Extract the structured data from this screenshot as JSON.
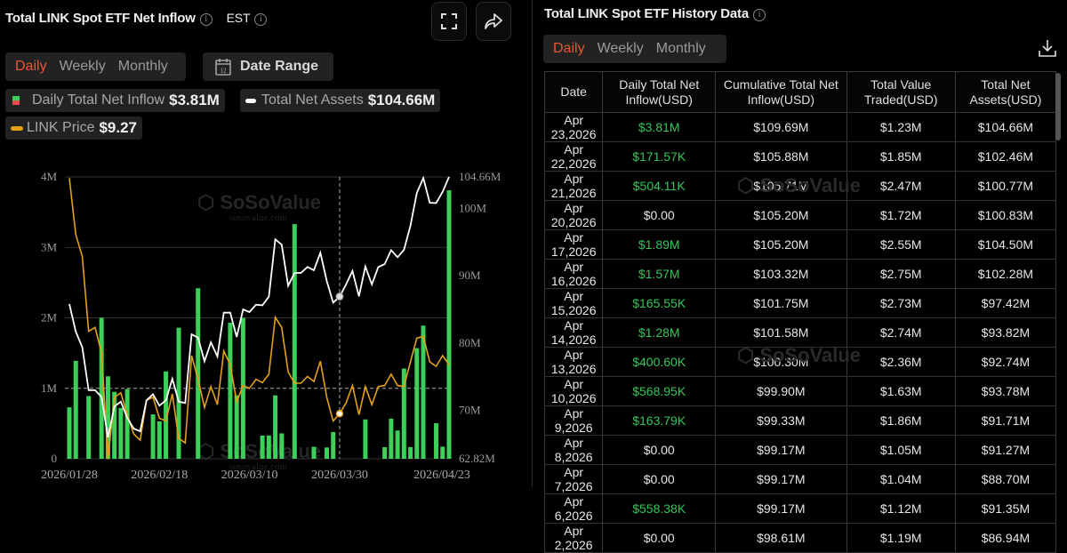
{
  "left": {
    "title": "Total LINK Spot ETF Net Inflow",
    "timezone": "EST",
    "icons": {
      "fullscreen": "fullscreen-icon",
      "share": "share-icon",
      "info": "info-icon",
      "calendar": "calendar-icon"
    },
    "tabs": [
      {
        "label": "Daily",
        "active": true
      },
      {
        "label": "Weekly",
        "active": false
      },
      {
        "label": "Monthly",
        "active": false
      }
    ],
    "date_range_label": "Date Range",
    "calendar_day": "12",
    "legend": [
      {
        "label": "Daily Total Net Inflow",
        "value": "$3.81M"
      },
      {
        "label": "Total Net Assets",
        "value": "$104.66M"
      },
      {
        "label": "LINK Price",
        "value": "$9.27"
      }
    ],
    "watermark": "SoSoValue",
    "watermark_sub": "sosovalue.com"
  },
  "colors": {
    "accent": "#e8572f",
    "bar": "#3ccf5a",
    "assets_line": "#ffffff",
    "price_line": "#e3a018",
    "positive": "#37c45a"
  },
  "chart_data": {
    "type": "bar+line",
    "x_tick_labels": [
      "2026/01/28",
      "2026/02/18",
      "2026/03/10",
      "2026/03/30",
      "2026/04/23"
    ],
    "x_tick_index": [
      0,
      14,
      28,
      42,
      59
    ],
    "left_axis": {
      "ticks": [
        "0",
        "1M",
        "2M",
        "3M",
        "4M"
      ],
      "tick_values": [
        0,
        1,
        2,
        3,
        4
      ],
      "range": [
        0,
        4
      ],
      "unit": "M USD"
    },
    "right_axis": {
      "ticks": [
        "62.82M",
        "70M",
        "80M",
        "90M",
        "100M",
        "104.66M"
      ],
      "tick_values": [
        62.82,
        70,
        80,
        90,
        100,
        104.66
      ],
      "range": [
        62.82,
        104.66
      ],
      "unit": "M USD"
    },
    "price_axis": {
      "visible": false,
      "range": [
        7.6,
        12.6
      ]
    },
    "dashed_reference": 1,
    "crosshair_index": 42,
    "grid": true,
    "series": [
      {
        "name": "Daily Total Net Inflow",
        "type": "bar",
        "axis": "left",
        "values": [
          0.73,
          1.39,
          0,
          0.89,
          0,
          2.0,
          1.17,
          0.95,
          0.72,
          0.99,
          0,
          0,
          0,
          0.63,
          0.53,
          1.24,
          0,
          1.86,
          0,
          0,
          2.42,
          0,
          0,
          0,
          0,
          1.93,
          0.9,
          2.0,
          0,
          0,
          0.33,
          0.33,
          0.9,
          0.36,
          0,
          3.33,
          0,
          0,
          0.17,
          0,
          0.16,
          0.38,
          0,
          0,
          0,
          0,
          0.558,
          0,
          0,
          0.164,
          0.569,
          0.401,
          1.28,
          0.166,
          1.57,
          1.89,
          0,
          0.504,
          0.172,
          3.81
        ]
      },
      {
        "name": "Total Net Assets",
        "type": "line",
        "axis": "right",
        "values": [
          85.8,
          81.7,
          79.4,
          73.0,
          73.0,
          72.0,
          66.0,
          70.6,
          71.3,
          68.9,
          67.3,
          66.9,
          71.5,
          72.4,
          70.7,
          71.5,
          74.7,
          71.3,
          71.1,
          81.3,
          80.8,
          77.3,
          80.1,
          78.0,
          84.5,
          84.5,
          80.9,
          85.0,
          84.6,
          85.7,
          85.6,
          86.9,
          95.4,
          94.6,
          88.5,
          90.4,
          90.4,
          91.3,
          90.8,
          93.4,
          89.2,
          86.0,
          86.9,
          88.7,
          90.7,
          86.94,
          91.35,
          88.7,
          91.27,
          91.71,
          93.78,
          92.74,
          93.82,
          97.42,
          102.28,
          104.5,
          100.83,
          100.77,
          102.46,
          104.66
        ]
      },
      {
        "name": "LINK Price",
        "type": "line",
        "axis": "price",
        "values": [
          12.58,
          11.58,
          11.19,
          9.86,
          9.93,
          9.48,
          7.59,
          8.69,
          8.77,
          8.38,
          8.04,
          7.93,
          8.64,
          8.69,
          8.32,
          8.27,
          8.75,
          7.96,
          7.88,
          9.43,
          9.01,
          8.51,
          8.88,
          8.56,
          9.51,
          9.27,
          8.61,
          8.9,
          8.85,
          9.01,
          8.95,
          9.1,
          10.11,
          9.93,
          9.14,
          8.94,
          8.94,
          9.06,
          8.97,
          9.33,
          8.69,
          8.27,
          8.4,
          8.59,
          8.9,
          8.38,
          8.88,
          8.56,
          8.88,
          8.9,
          9.1,
          8.9,
          8.88,
          9.32,
          9.74,
          9.77,
          9.32,
          9.24,
          9.43,
          9.27
        ]
      }
    ]
  },
  "right": {
    "title": "Total LINK Spot ETF History Data",
    "tabs": [
      {
        "label": "Daily",
        "active": true
      },
      {
        "label": "Weekly",
        "active": false
      },
      {
        "label": "Monthly",
        "active": false
      }
    ],
    "download_icon": "download-icon",
    "columns": [
      "Date",
      "Daily Total Net Inflow(USD)",
      "Cumulative Total Net Inflow(USD)",
      "Total Value Traded(USD)",
      "Total Net Assets(USD)"
    ],
    "rows": [
      [
        "Apr 23,2026",
        "$3.81M",
        "$109.69M",
        "$1.23M",
        "$104.66M"
      ],
      [
        "Apr 22,2026",
        "$171.57K",
        "$105.88M",
        "$1.85M",
        "$102.46M"
      ],
      [
        "Apr 21,2026",
        "$504.11K",
        "$105.71M",
        "$2.47M",
        "$100.77M"
      ],
      [
        "Apr 20,2026",
        "$0.00",
        "$105.20M",
        "$1.72M",
        "$100.83M"
      ],
      [
        "Apr 17,2026",
        "$1.89M",
        "$105.20M",
        "$2.55M",
        "$104.50M"
      ],
      [
        "Apr 16,2026",
        "$1.57M",
        "$103.32M",
        "$2.75M",
        "$102.28M"
      ],
      [
        "Apr 15,2026",
        "$165.55K",
        "$101.75M",
        "$2.73M",
        "$97.42M"
      ],
      [
        "Apr 14,2026",
        "$1.28M",
        "$101.58M",
        "$2.74M",
        "$93.82M"
      ],
      [
        "Apr 13,2026",
        "$400.60K",
        "$100.30M",
        "$2.36M",
        "$92.74M"
      ],
      [
        "Apr 10,2026",
        "$568.95K",
        "$99.90M",
        "$1.63M",
        "$93.78M"
      ],
      [
        "Apr 9,2026",
        "$163.79K",
        "$99.33M",
        "$1.86M",
        "$91.71M"
      ],
      [
        "Apr 8,2026",
        "$0.00",
        "$99.17M",
        "$1.05M",
        "$91.27M"
      ],
      [
        "Apr 7,2026",
        "$0.00",
        "$99.17M",
        "$1.04M",
        "$88.70M"
      ],
      [
        "Apr 6,2026",
        "$558.38K",
        "$99.17M",
        "$1.12M",
        "$91.35M"
      ],
      [
        "Apr 2,2026",
        "$0.00",
        "$98.61M",
        "$1.19M",
        "$86.94M"
      ]
    ]
  }
}
